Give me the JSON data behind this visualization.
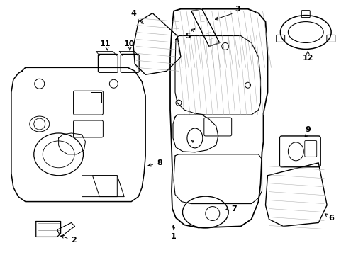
{
  "background_color": "#ffffff",
  "line_color": "#000000",
  "fig_width": 4.89,
  "fig_height": 3.6,
  "dpi": 100,
  "label_fontsize": 8
}
